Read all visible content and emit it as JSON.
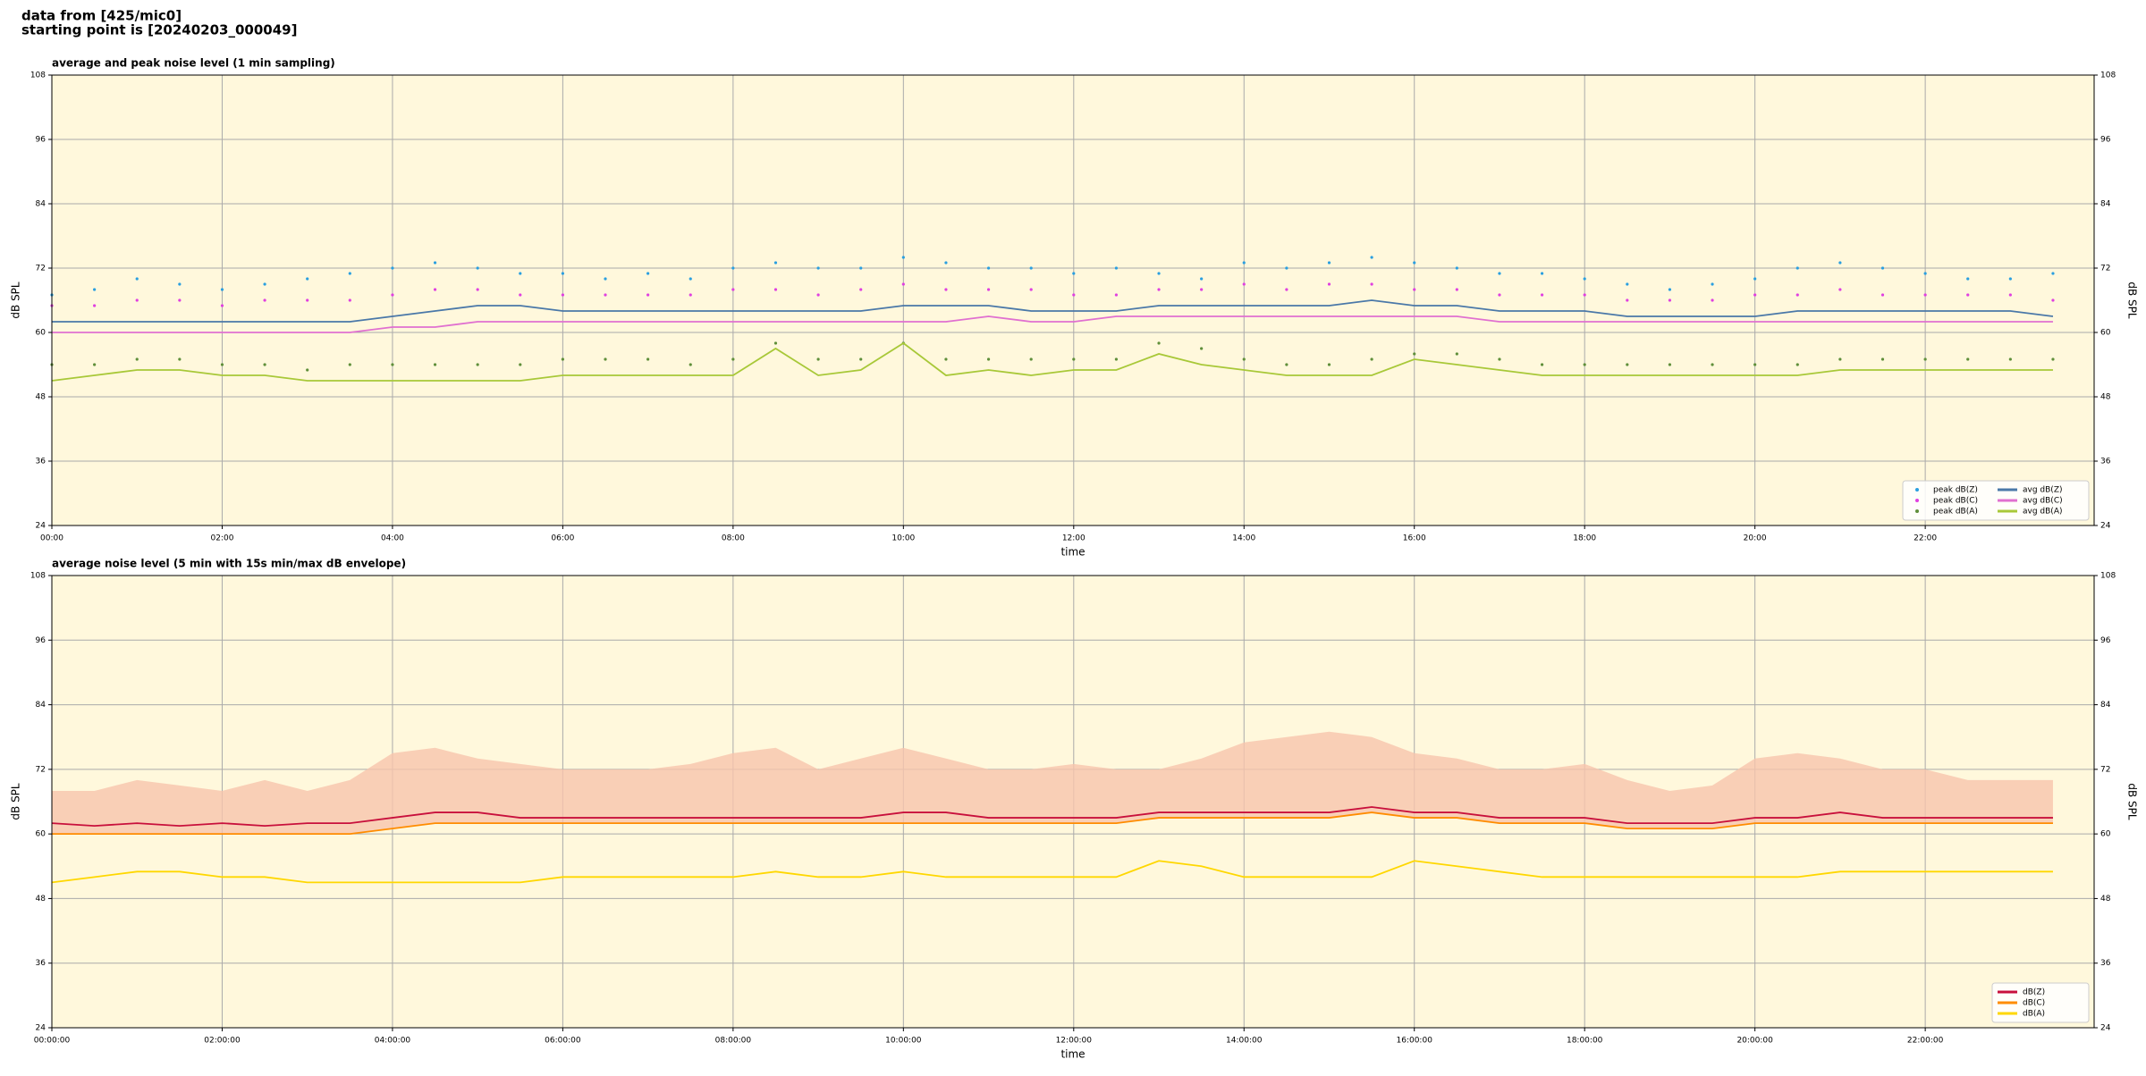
{
  "header": {
    "line1": "data from [425/mic0]",
    "line2": "starting point is [20240203_000049]"
  },
  "chart_data": [
    {
      "type": "line",
      "title": "average and peak noise level (1 min sampling)",
      "xlabel": "time",
      "ylabel": "dB SPL",
      "y2label": "dB SPL",
      "x": [
        "00:00",
        "00:30",
        "01:00",
        "01:30",
        "02:00",
        "02:30",
        "03:00",
        "03:30",
        "04:00",
        "04:30",
        "05:00",
        "05:30",
        "06:00",
        "06:30",
        "07:00",
        "07:30",
        "08:00",
        "08:30",
        "09:00",
        "09:30",
        "10:00",
        "10:30",
        "11:00",
        "11:30",
        "12:00",
        "12:30",
        "13:00",
        "13:30",
        "14:00",
        "14:30",
        "15:00",
        "15:30",
        "16:00",
        "16:30",
        "17:00",
        "17:30",
        "18:00",
        "18:30",
        "19:00",
        "19:30",
        "20:00",
        "20:30",
        "21:00",
        "21:30",
        "22:00",
        "22:30",
        "23:00",
        "23:30"
      ],
      "xlim": [
        "00:00",
        "23:59"
      ],
      "xticks": [
        "00:00",
        "02:00",
        "04:00",
        "06:00",
        "08:00",
        "10:00",
        "12:00",
        "14:00",
        "16:00",
        "18:00",
        "20:00",
        "22:00"
      ],
      "ylim": [
        24,
        108
      ],
      "yticks": [
        24,
        36,
        48,
        60,
        72,
        84,
        96,
        108
      ],
      "grid": true,
      "legend": "lower right",
      "legend_columns": 2,
      "series": [
        {
          "name": "peak dB(Z)",
          "style": "scatter",
          "color": "#2a9fe0",
          "values": [
            67,
            68,
            70,
            69,
            68,
            69,
            70,
            71,
            72,
            73,
            72,
            71,
            71,
            70,
            71,
            70,
            72,
            73,
            72,
            72,
            74,
            73,
            72,
            72,
            71,
            72,
            71,
            70,
            73,
            72,
            73,
            74,
            73,
            72,
            71,
            71,
            70,
            69,
            68,
            69,
            70,
            72,
            73,
            72,
            71,
            70,
            70,
            71
          ]
        },
        {
          "name": "peak dB(C)",
          "style": "scatter",
          "color": "#e040e0",
          "values": [
            65,
            65,
            66,
            66,
            65,
            66,
            66,
            66,
            67,
            68,
            68,
            67,
            67,
            67,
            67,
            67,
            68,
            68,
            67,
            68,
            69,
            68,
            68,
            68,
            67,
            67,
            68,
            68,
            69,
            68,
            69,
            69,
            68,
            68,
            67,
            67,
            67,
            66,
            66,
            66,
            67,
            67,
            68,
            67,
            67,
            67,
            67,
            66
          ]
        },
        {
          "name": "peak dB(A)",
          "style": "scatter",
          "color": "#5f8f3a",
          "values": [
            54,
            54,
            55,
            55,
            54,
            54,
            53,
            54,
            54,
            54,
            54,
            54,
            55,
            55,
            55,
            54,
            55,
            58,
            55,
            55,
            58,
            55,
            55,
            55,
            55,
            55,
            58,
            57,
            55,
            54,
            54,
            55,
            56,
            56,
            55,
            54,
            54,
            54,
            54,
            54,
            54,
            54,
            55,
            55,
            55,
            55,
            55,
            55
          ]
        },
        {
          "name": "avg dB(Z)",
          "style": "line",
          "color": "#4a78a8",
          "values": [
            62,
            62,
            62,
            62,
            62,
            62,
            62,
            62,
            63,
            64,
            65,
            65,
            64,
            64,
            64,
            64,
            64,
            64,
            64,
            64,
            65,
            65,
            65,
            64,
            64,
            64,
            65,
            65,
            65,
            65,
            65,
            66,
            65,
            65,
            64,
            64,
            64,
            63,
            63,
            63,
            63,
            64,
            64,
            64,
            64,
            64,
            64,
            63
          ]
        },
        {
          "name": "avg dB(C)",
          "style": "line",
          "color": "#e070d0",
          "values": [
            60,
            60,
            60,
            60,
            60,
            60,
            60,
            60,
            61,
            61,
            62,
            62,
            62,
            62,
            62,
            62,
            62,
            62,
            62,
            62,
            62,
            62,
            63,
            62,
            62,
            63,
            63,
            63,
            63,
            63,
            63,
            63,
            63,
            63,
            62,
            62,
            62,
            62,
            62,
            62,
            62,
            62,
            62,
            62,
            62,
            62,
            62,
            62
          ]
        },
        {
          "name": "avg dB(A)",
          "style": "line",
          "color": "#a8c838",
          "values": [
            51,
            52,
            53,
            53,
            52,
            52,
            51,
            51,
            51,
            51,
            51,
            51,
            52,
            52,
            52,
            52,
            52,
            57,
            52,
            53,
            58,
            52,
            53,
            52,
            53,
            53,
            56,
            54,
            53,
            52,
            52,
            52,
            55,
            54,
            53,
            52,
            52,
            52,
            52,
            52,
            52,
            52,
            53,
            53,
            53,
            53,
            53,
            53
          ]
        }
      ]
    },
    {
      "type": "line",
      "title": "average noise level (5 min with 15s min/max dB envelope)",
      "xlabel": "time",
      "ylabel": "dB SPL",
      "y2label": "dB SPL",
      "x": [
        "00:00:00",
        "00:30:00",
        "01:00:00",
        "01:30:00",
        "02:00:00",
        "02:30:00",
        "03:00:00",
        "03:30:00",
        "04:00:00",
        "04:30:00",
        "05:00:00",
        "05:30:00",
        "06:00:00",
        "06:30:00",
        "07:00:00",
        "07:30:00",
        "08:00:00",
        "08:30:00",
        "09:00:00",
        "09:30:00",
        "10:00:00",
        "10:30:00",
        "11:00:00",
        "11:30:00",
        "12:00:00",
        "12:30:00",
        "13:00:00",
        "13:30:00",
        "14:00:00",
        "14:30:00",
        "15:00:00",
        "15:30:00",
        "16:00:00",
        "16:30:00",
        "17:00:00",
        "17:30:00",
        "18:00:00",
        "18:30:00",
        "19:00:00",
        "19:30:00",
        "20:00:00",
        "20:30:00",
        "21:00:00",
        "21:30:00",
        "22:00:00",
        "22:30:00",
        "23:00:00",
        "23:30:00"
      ],
      "xlim": [
        "00:00:00",
        "23:59:00"
      ],
      "xticks": [
        "00:00:00",
        "02:00:00",
        "04:00:00",
        "06:00:00",
        "08:00:00",
        "10:00:00",
        "12:00:00",
        "14:00:00",
        "16:00:00",
        "18:00:00",
        "20:00:00",
        "22:00:00"
      ],
      "ylim": [
        24,
        108
      ],
      "yticks": [
        24,
        36,
        48,
        60,
        72,
        84,
        96,
        108
      ],
      "grid": true,
      "legend": "lower right",
      "legend_columns": 1,
      "envelope": {
        "color": "#f8c4ac",
        "values": [
          68,
          68,
          70,
          69,
          68,
          70,
          68,
          70,
          75,
          76,
          74,
          73,
          72,
          72,
          72,
          73,
          75,
          76,
          72,
          74,
          76,
          74,
          72,
          72,
          73,
          72,
          72,
          74,
          77,
          78,
          79,
          78,
          75,
          74,
          72,
          72,
          73,
          70,
          68,
          69,
          74,
          75,
          74,
          72,
          72,
          70,
          70,
          70
        ]
      },
      "series": [
        {
          "name": "dB(Z)",
          "style": "line",
          "color": "#c8103c",
          "values": [
            62,
            61.5,
            62,
            61.5,
            62,
            61.5,
            62,
            62,
            63,
            64,
            64,
            63,
            63,
            63,
            63,
            63,
            63,
            63,
            63,
            63,
            64,
            64,
            63,
            63,
            63,
            63,
            64,
            64,
            64,
            64,
            64,
            65,
            64,
            64,
            63,
            63,
            63,
            62,
            62,
            62,
            63,
            63,
            64,
            63,
            63,
            63,
            63,
            63
          ]
        },
        {
          "name": "dB(C)",
          "style": "line",
          "color": "#ff8c00",
          "values": [
            60,
            60,
            60,
            60,
            60,
            60,
            60,
            60,
            61,
            62,
            62,
            62,
            62,
            62,
            62,
            62,
            62,
            62,
            62,
            62,
            62,
            62,
            62,
            62,
            62,
            62,
            63,
            63,
            63,
            63,
            63,
            64,
            63,
            63,
            62,
            62,
            62,
            61,
            61,
            61,
            62,
            62,
            62,
            62,
            62,
            62,
            62,
            62
          ]
        },
        {
          "name": "dB(A)",
          "style": "line",
          "color": "#ffd700",
          "values": [
            51,
            52,
            53,
            53,
            52,
            52,
            51,
            51,
            51,
            51,
            51,
            51,
            52,
            52,
            52,
            52,
            52,
            53,
            52,
            52,
            53,
            52,
            52,
            52,
            52,
            52,
            55,
            54,
            52,
            52,
            52,
            52,
            55,
            54,
            53,
            52,
            52,
            52,
            52,
            52,
            52,
            52,
            53,
            53,
            53,
            53,
            53,
            53
          ]
        }
      ]
    }
  ]
}
